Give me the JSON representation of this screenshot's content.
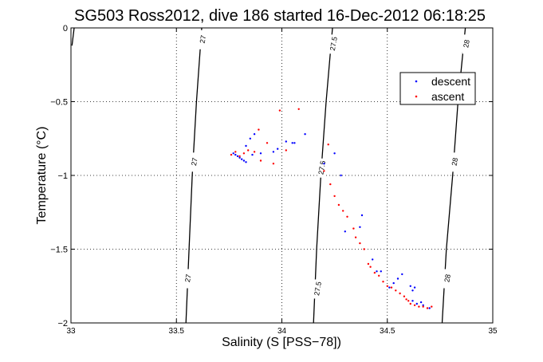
{
  "chart_data": {
    "type": "scatter",
    "title": "SG503 Ross2012, dive 186 started 16-Dec-2012 06:18:25",
    "xlabel": "Salinity (S [PSS−78])",
    "ylabel": "Temperature (°C)",
    "xlim": [
      33,
      35
    ],
    "ylim": [
      -2,
      0
    ],
    "x_ticks": [
      33,
      33.5,
      34,
      34.5,
      35
    ],
    "x_tick_labels": [
      "33",
      "33.5",
      "34",
      "34.5",
      "35"
    ],
    "y_ticks": [
      0,
      -0.5,
      -1,
      -1.5,
      -2
    ],
    "y_tick_labels": [
      "0",
      "−0.5",
      "−1",
      "−1.5",
      "−2"
    ],
    "grid": true,
    "legend_position": "top-right",
    "contours": [
      {
        "label": "27",
        "points": [
          [
            33.015,
            0
          ],
          [
            33.005,
            -0.12
          ]
        ],
        "label_at": []
      },
      {
        "label": "27",
        "points": [
          [
            33.62,
            0
          ],
          [
            33.595,
            -0.5
          ],
          [
            33.575,
            -1.0
          ],
          [
            33.56,
            -1.5
          ],
          [
            33.545,
            -2.0
          ]
        ],
        "label_at": [
          [
            33.625,
            -0.08
          ],
          [
            33.585,
            -0.91
          ],
          [
            33.555,
            -1.7
          ]
        ]
      },
      {
        "label": "27.5",
        "points": [
          [
            34.24,
            0
          ],
          [
            34.21,
            -0.5
          ],
          [
            34.185,
            -1.0
          ],
          [
            34.165,
            -1.5
          ],
          [
            34.15,
            -2.0
          ]
        ],
        "label_at": [
          [
            34.245,
            -0.11
          ],
          [
            34.19,
            -0.95
          ],
          [
            34.17,
            -1.77
          ]
        ]
      },
      {
        "label": "28",
        "points": [
          [
            34.87,
            0
          ],
          [
            34.835,
            -0.5
          ],
          [
            34.81,
            -1.0
          ],
          [
            34.78,
            -1.5
          ],
          [
            34.76,
            -2.0
          ]
        ],
        "label_at": [
          [
            34.875,
            -0.11
          ],
          [
            34.82,
            -0.91
          ],
          [
            34.785,
            -1.7
          ]
        ]
      }
    ],
    "series": [
      {
        "name": "descent",
        "color": "#0000ff",
        "points": [
          [
            33.77,
            -0.85
          ],
          [
            33.78,
            -0.86
          ],
          [
            33.8,
            -0.88
          ],
          [
            33.82,
            -0.9
          ],
          [
            33.83,
            -0.91
          ],
          [
            33.81,
            -0.89
          ],
          [
            33.79,
            -0.87
          ],
          [
            33.83,
            -0.8
          ],
          [
            33.85,
            -0.75
          ],
          [
            33.87,
            -0.72
          ],
          [
            33.86,
            -0.86
          ],
          [
            33.9,
            -0.85
          ],
          [
            33.96,
            -0.84
          ],
          [
            33.98,
            -0.82
          ],
          [
            34.02,
            -0.77
          ],
          [
            34.05,
            -0.78
          ],
          [
            34.06,
            -0.78
          ],
          [
            34.11,
            -0.72
          ],
          [
            34.2,
            -0.92
          ],
          [
            34.25,
            -0.85
          ],
          [
            34.28,
            -1.0
          ],
          [
            34.38,
            -1.27
          ],
          [
            34.3,
            -1.38
          ],
          [
            34.37,
            -1.35
          ],
          [
            34.43,
            -1.57
          ],
          [
            34.45,
            -1.65
          ],
          [
            34.47,
            -1.65
          ],
          [
            34.51,
            -1.76
          ],
          [
            34.53,
            -1.73
          ],
          [
            34.55,
            -1.7
          ],
          [
            34.57,
            -1.67
          ],
          [
            34.61,
            -1.75
          ],
          [
            34.62,
            -1.78
          ],
          [
            34.63,
            -1.76
          ],
          [
            34.62,
            -1.85
          ],
          [
            34.64,
            -1.87
          ],
          [
            34.66,
            -1.86
          ],
          [
            34.67,
            -1.88
          ],
          [
            34.7,
            -1.9
          ]
        ]
      },
      {
        "name": "ascent",
        "color": "#ff0000",
        "points": [
          [
            33.76,
            -0.86
          ],
          [
            33.78,
            -0.84
          ],
          [
            33.8,
            -0.87
          ],
          [
            33.82,
            -0.85
          ],
          [
            33.84,
            -0.83
          ],
          [
            33.87,
            -0.84
          ],
          [
            33.89,
            -0.69
          ],
          [
            33.9,
            -0.9
          ],
          [
            33.93,
            -0.78
          ],
          [
            33.96,
            -0.92
          ],
          [
            33.99,
            -0.56
          ],
          [
            34.02,
            -0.83
          ],
          [
            34.08,
            -0.55
          ],
          [
            34.22,
            -0.79
          ],
          [
            34.2,
            -0.97
          ],
          [
            34.23,
            -1.06
          ],
          [
            34.25,
            -1.14
          ],
          [
            34.27,
            -1.2
          ],
          [
            34.29,
            -1.24
          ],
          [
            34.31,
            -1.28
          ],
          [
            34.34,
            -1.36
          ],
          [
            34.35,
            -1.42
          ],
          [
            34.37,
            -1.46
          ],
          [
            34.39,
            -1.5
          ],
          [
            34.41,
            -1.6
          ],
          [
            34.42,
            -1.62
          ],
          [
            34.44,
            -1.66
          ],
          [
            34.46,
            -1.68
          ],
          [
            34.48,
            -1.72
          ],
          [
            34.5,
            -1.75
          ],
          [
            34.52,
            -1.76
          ],
          [
            34.54,
            -1.78
          ],
          [
            34.56,
            -1.8
          ],
          [
            34.58,
            -1.82
          ],
          [
            34.59,
            -1.84
          ],
          [
            34.6,
            -1.85
          ],
          [
            34.61,
            -1.87
          ],
          [
            34.63,
            -1.88
          ],
          [
            34.65,
            -1.89
          ],
          [
            34.67,
            -1.89
          ],
          [
            34.69,
            -1.9
          ],
          [
            34.71,
            -1.89
          ]
        ]
      }
    ]
  }
}
